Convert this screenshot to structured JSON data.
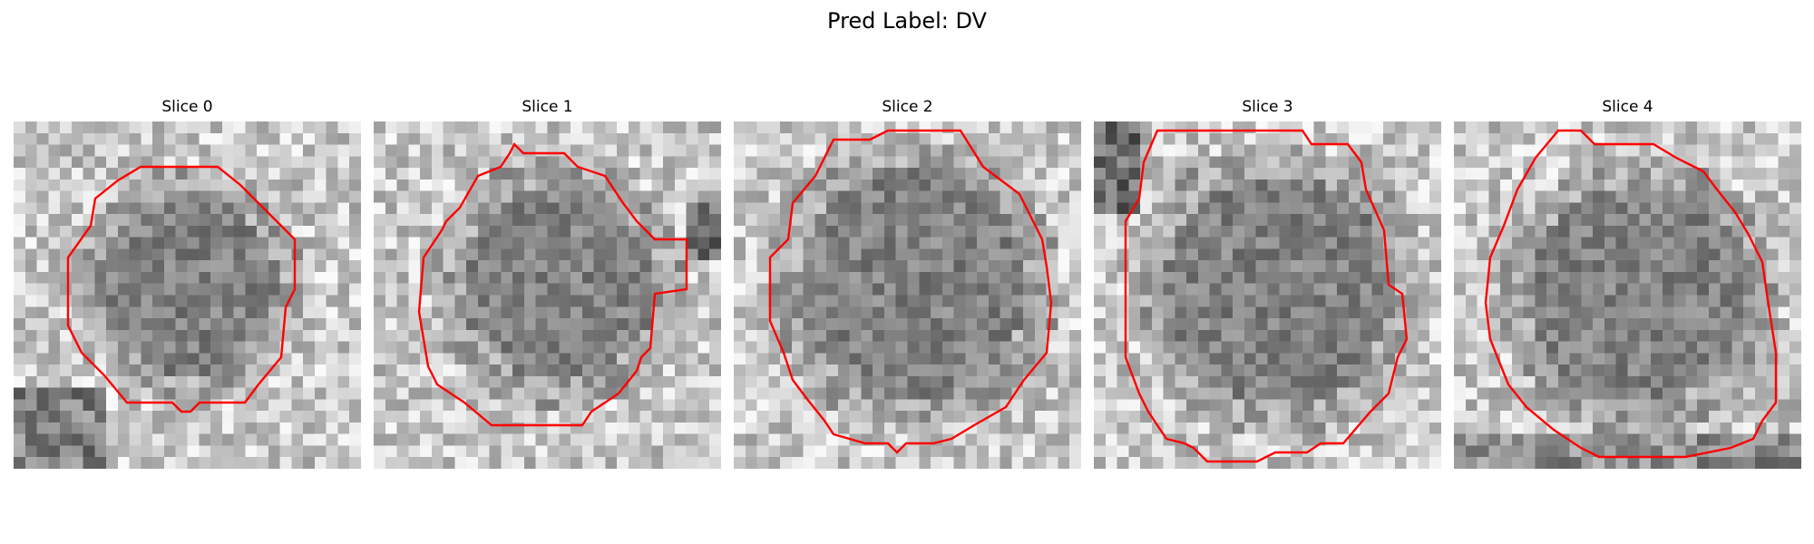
{
  "suptitle": "Pred Label: DV",
  "panels": [
    {
      "title": "Slice 0"
    },
    {
      "title": "Slice 1"
    },
    {
      "title": "Slice 2"
    },
    {
      "title": "Slice 3"
    },
    {
      "title": "Slice 4"
    }
  ],
  "colors": {
    "contour": "#ff0000",
    "background": "#ffffff"
  },
  "image": {
    "colormap": "grayscale",
    "grid": "30x30 pixelated intensity patch"
  }
}
